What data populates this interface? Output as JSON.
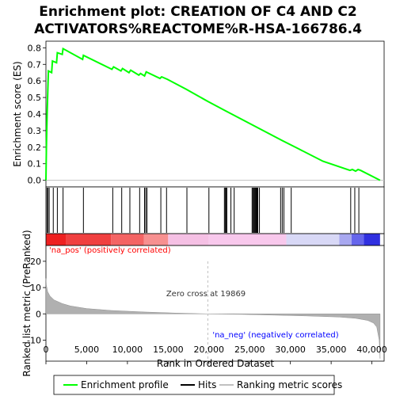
{
  "title_line1": "Enrichment plot: CREATION OF C4 AND C2",
  "title_line2": "ACTIVATORS%REACTOME%R-HSA-166786.4",
  "colors": {
    "enrichment_line": "#00ff00",
    "hits": "#000000",
    "metric_fill": "#b0b0b0",
    "pos_label": "#ff0000",
    "neg_label": "#0000ff",
    "zero_line": "#c0c0c0"
  },
  "legend": {
    "items": [
      {
        "label": "Enrichment profile",
        "color": "#00ff00",
        "style": "line"
      },
      {
        "label": "Hits",
        "color": "#000000",
        "style": "line"
      },
      {
        "label": "Ranking metric scores",
        "color": "#c0c0c0",
        "style": "line"
      }
    ]
  },
  "chart_data": [
    {
      "type": "line",
      "name": "enrichment-profile",
      "ylabel": "Enrichment score (ES)",
      "xlim": [
        0,
        41500
      ],
      "ylim": [
        -0.04,
        0.84
      ],
      "yticks": [
        0.0,
        0.1,
        0.2,
        0.3,
        0.4,
        0.5,
        0.6,
        0.7,
        0.8
      ],
      "ytick_labels": [
        "0.0",
        "0.1",
        "0.2",
        "0.3",
        "0.4",
        "0.5",
        "0.6",
        "0.7",
        "0.8"
      ],
      "series": [
        {
          "name": "Enrichment profile",
          "x": [
            0,
            60,
            150,
            300,
            700,
            800,
            1300,
            1400,
            2000,
            2100,
            4500,
            4600,
            8100,
            8300,
            9200,
            9400,
            10200,
            10400,
            11400,
            11600,
            12100,
            12300,
            14000,
            14200,
            14900,
            17200,
            19900,
            22000,
            25500,
            29000,
            31000,
            34000,
            37300,
            37600,
            38000,
            38300,
            38600,
            41000
          ],
          "y": [
            0.0,
            0.2,
            0.4,
            0.66,
            0.65,
            0.72,
            0.71,
            0.77,
            0.76,
            0.795,
            0.73,
            0.755,
            0.67,
            0.685,
            0.66,
            0.675,
            0.65,
            0.665,
            0.635,
            0.645,
            0.63,
            0.655,
            0.615,
            0.625,
            0.61,
            0.55,
            0.475,
            0.42,
            0.33,
            0.24,
            0.19,
            0.115,
            0.06,
            0.065,
            0.055,
            0.065,
            0.06,
            0.0
          ]
        }
      ]
    },
    {
      "type": "scatter",
      "name": "hits",
      "xlim": [
        0,
        41500
      ],
      "hits": [
        120,
        250,
        400,
        900,
        1400,
        2100,
        4600,
        8200,
        9300,
        10300,
        11500,
        12100,
        12250,
        12400,
        14100,
        14800,
        17300,
        20000,
        21900,
        22000,
        22100,
        22200,
        22700,
        23100,
        25300,
        25400,
        25500,
        25600,
        25700,
        25800,
        25900,
        26000,
        26200,
        28800,
        29000,
        29200,
        30100,
        37400,
        37900,
        38400
      ]
    },
    {
      "type": "heatmap",
      "name": "ranking-color-bar",
      "xlim": [
        0,
        41500
      ],
      "segments": [
        {
          "x0": 0,
          "x1": 2500,
          "color": "#ee2020"
        },
        {
          "x0": 2500,
          "x1": 8000,
          "color": "#f04040"
        },
        {
          "x0": 8000,
          "x1": 12000,
          "color": "#f46464"
        },
        {
          "x0": 12000,
          "x1": 15000,
          "color": "#f79090"
        },
        {
          "x0": 15000,
          "x1": 20000,
          "color": "#f5c0e4"
        },
        {
          "x0": 20000,
          "x1": 29500,
          "color": "#f8c8ec"
        },
        {
          "x0": 29500,
          "x1": 36000,
          "color": "#d8d8f6"
        },
        {
          "x0": 36000,
          "x1": 37500,
          "color": "#a8a8f0"
        },
        {
          "x0": 37500,
          "x1": 39000,
          "color": "#6666ec"
        },
        {
          "x0": 39000,
          "x1": 41000,
          "color": "#3030e0"
        }
      ]
    },
    {
      "type": "area",
      "name": "ranked-list-metric",
      "xlabel": "Rank in Ordered Dataset",
      "ylabel": "Ranked list metric (PreRanked)",
      "xlim": [
        0,
        41500
      ],
      "ylim": [
        -18,
        26
      ],
      "yticks": [
        -10,
        0,
        10,
        20
      ],
      "ytick_labels": [
        "-10",
        "0",
        "10",
        "20"
      ],
      "xticks": [
        0,
        5000,
        10000,
        15000,
        20000,
        25000,
        30000,
        35000,
        40000
      ],
      "xtick_labels": [
        "0",
        "5,000",
        "10,000",
        "15,000",
        "20,000",
        "25,000",
        "30,000",
        "35,000",
        "40,000"
      ],
      "x": [
        0,
        50,
        200,
        500,
        1000,
        2000,
        3000,
        5000,
        8000,
        12000,
        16000,
        19869,
        24000,
        28000,
        32000,
        36000,
        38000,
        39500,
        40200,
        40600,
        40900,
        41000
      ],
      "y": [
        13.5,
        11,
        8.5,
        6.8,
        5.3,
        3.9,
        3.0,
        2.0,
        1.3,
        0.7,
        0.3,
        0.0,
        -0.2,
        -0.5,
        -0.8,
        -1.2,
        -1.7,
        -2.5,
        -3.5,
        -5,
        -10,
        -17
      ],
      "zero_cross_label": "Zero cross at 19869",
      "pos_label": "'na_pos' (positively correlated)",
      "neg_label": "'na_neg' (negatively correlated)"
    }
  ]
}
